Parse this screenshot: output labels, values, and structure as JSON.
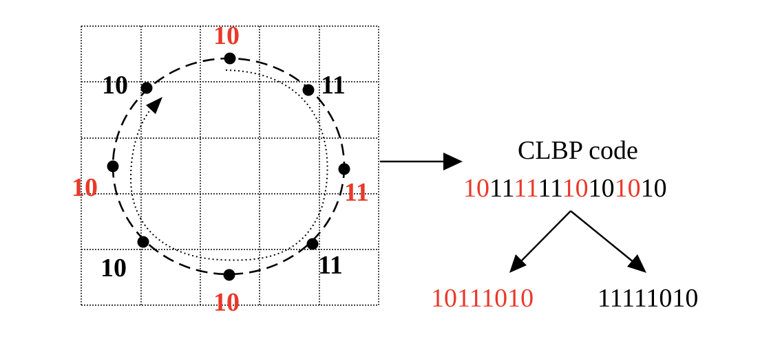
{
  "colors": {
    "accent": "#e8392b",
    "ink": "#000000"
  },
  "neighbor_labels": [
    {
      "id": "top",
      "text": "10",
      "color": "accent"
    },
    {
      "id": "top-left",
      "text": "10",
      "color": "ink"
    },
    {
      "id": "top-right",
      "text": "11",
      "color": "ink"
    },
    {
      "id": "left",
      "text": "10",
      "color": "accent"
    },
    {
      "id": "right",
      "text": "11",
      "color": "accent"
    },
    {
      "id": "bottom-left",
      "text": "10",
      "color": "ink"
    },
    {
      "id": "bottom",
      "text": "10",
      "color": "accent"
    },
    {
      "id": "bottom-right",
      "text": "11",
      "color": "ink"
    }
  ],
  "code": {
    "title": "CLBP code",
    "segments": [
      {
        "text": "10",
        "color": "accent"
      },
      {
        "text": "11",
        "color": "ink"
      },
      {
        "text": "11",
        "color": "accent"
      },
      {
        "text": "11",
        "color": "ink"
      },
      {
        "text": "10",
        "color": "accent"
      },
      {
        "text": "10",
        "color": "ink"
      },
      {
        "text": "10",
        "color": "accent"
      },
      {
        "text": "10",
        "color": "ink"
      }
    ]
  },
  "outputs": {
    "left": {
      "text": "10111010",
      "color": "accent"
    },
    "right": {
      "text": "11111010",
      "color": "ink"
    }
  }
}
